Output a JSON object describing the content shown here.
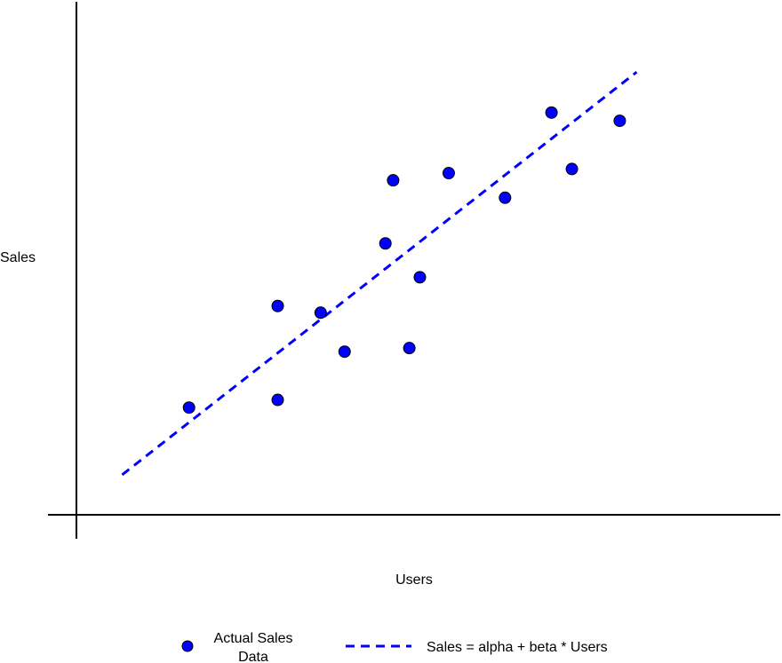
{
  "chart_data": {
    "type": "scatter",
    "title": "",
    "xlabel": "Users",
    "ylabel": "Sales",
    "grid": false,
    "axis_ticks": false,
    "xlim": [
      0,
      100
    ],
    "ylim": [
      0,
      100
    ],
    "series": [
      {
        "name": "Actual Sales Data",
        "kind": "scatter",
        "color": "#0000ff",
        "x": [
          16.0,
          28.6,
          28.6,
          34.7,
          38.1,
          43.9,
          45.0,
          47.3,
          48.8,
          52.9,
          60.9,
          67.5,
          70.4,
          77.2
        ],
        "y": [
          20.9,
          22.4,
          40.7,
          39.4,
          31.8,
          52.9,
          65.2,
          32.5,
          46.3,
          66.6,
          61.8,
          78.4,
          67.4,
          76.8
        ]
      },
      {
        "name": "Sales = alpha + beta * Users",
        "kind": "line",
        "style": "dashed",
        "color": "#0000ff",
        "x": [
          6.5,
          79.6
        ],
        "y": [
          7.8,
          86.3
        ]
      }
    ],
    "legend": {
      "position": "bottom",
      "items": [
        {
          "marker": "circle",
          "color": "#0000ff",
          "lines": [
            "Actual Sales",
            "Data"
          ]
        },
        {
          "marker": "dashed-line",
          "color": "#0000ff",
          "lines": [
            "Sales = alpha + beta * Users"
          ]
        }
      ]
    }
  }
}
